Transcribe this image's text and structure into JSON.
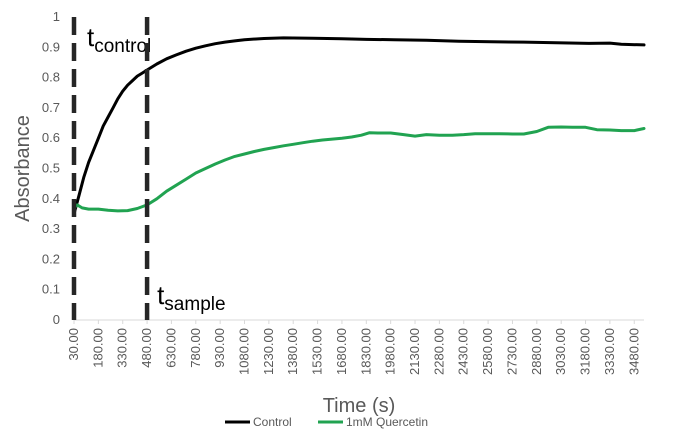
{
  "chart_data": {
    "type": "line",
    "title": "",
    "xlabel": "Time (s)",
    "ylabel": "Absorbance",
    "ylim": [
      0,
      1
    ],
    "xlim": [
      30,
      3540
    ],
    "grid": false,
    "legend_position": "bottom",
    "y_ticks": [
      "0",
      "0.1",
      "0.2",
      "0.3",
      "0.4",
      "0.5",
      "0.6",
      "0.7",
      "0.8",
      "0.9",
      "1"
    ],
    "x_ticks": [
      "30.00",
      "180.00",
      "330.00",
      "480.00",
      "630.00",
      "780.00",
      "930.00",
      "1080.00",
      "1230.00",
      "1380.00",
      "1530.00",
      "1680.00",
      "1830.00",
      "1980.00",
      "2130.00",
      "2280.00",
      "2430.00",
      "2580.00",
      "2730.00",
      "2880.00",
      "3030.00",
      "3180.00",
      "3330.00",
      "3480.00"
    ],
    "series": [
      {
        "name": "Control",
        "color": "#000000",
        "points": [
          [
            30,
            0.35
          ],
          [
            60,
            0.41
          ],
          [
            90,
            0.47
          ],
          [
            120,
            0.52
          ],
          [
            150,
            0.56
          ],
          [
            180,
            0.6
          ],
          [
            210,
            0.64
          ],
          [
            240,
            0.67
          ],
          [
            270,
            0.7
          ],
          [
            300,
            0.73
          ],
          [
            330,
            0.755
          ],
          [
            360,
            0.775
          ],
          [
            390,
            0.79
          ],
          [
            420,
            0.805
          ],
          [
            450,
            0.815
          ],
          [
            480,
            0.825
          ],
          [
            540,
            0.845
          ],
          [
            600,
            0.862
          ],
          [
            660,
            0.875
          ],
          [
            720,
            0.887
          ],
          [
            780,
            0.897
          ],
          [
            840,
            0.905
          ],
          [
            900,
            0.912
          ],
          [
            960,
            0.917
          ],
          [
            1020,
            0.921
          ],
          [
            1080,
            0.925
          ],
          [
            1200,
            0.929
          ],
          [
            1320,
            0.931
          ],
          [
            1500,
            0.93
          ],
          [
            1680,
            0.928
          ],
          [
            1830,
            0.926
          ],
          [
            2000,
            0.925
          ],
          [
            2200,
            0.923
          ],
          [
            2400,
            0.92
          ],
          [
            2600,
            0.918
          ],
          [
            2800,
            0.917
          ],
          [
            3000,
            0.915
          ],
          [
            3200,
            0.913
          ],
          [
            3330,
            0.914
          ],
          [
            3400,
            0.91
          ],
          [
            3540,
            0.908
          ]
        ]
      },
      {
        "name": "1mM Quercetin",
        "color": "#21a351",
        "points": [
          [
            30,
            0.37
          ],
          [
            50,
            0.38
          ],
          [
            80,
            0.37
          ],
          [
            120,
            0.366
          ],
          [
            180,
            0.366
          ],
          [
            240,
            0.362
          ],
          [
            300,
            0.36
          ],
          [
            360,
            0.361
          ],
          [
            420,
            0.368
          ],
          [
            480,
            0.38
          ],
          [
            540,
            0.4
          ],
          [
            600,
            0.425
          ],
          [
            660,
            0.445
          ],
          [
            720,
            0.465
          ],
          [
            780,
            0.485
          ],
          [
            840,
            0.5
          ],
          [
            900,
            0.515
          ],
          [
            960,
            0.528
          ],
          [
            1020,
            0.54
          ],
          [
            1080,
            0.548
          ],
          [
            1140,
            0.556
          ],
          [
            1200,
            0.563
          ],
          [
            1260,
            0.569
          ],
          [
            1320,
            0.575
          ],
          [
            1380,
            0.58
          ],
          [
            1440,
            0.585
          ],
          [
            1500,
            0.59
          ],
          [
            1560,
            0.594
          ],
          [
            1620,
            0.597
          ],
          [
            1680,
            0.6
          ],
          [
            1740,
            0.604
          ],
          [
            1800,
            0.61
          ],
          [
            1850,
            0.618
          ],
          [
            1900,
            0.617
          ],
          [
            1980,
            0.617
          ],
          [
            2060,
            0.612
          ],
          [
            2130,
            0.607
          ],
          [
            2200,
            0.612
          ],
          [
            2280,
            0.61
          ],
          [
            2360,
            0.61
          ],
          [
            2430,
            0.612
          ],
          [
            2500,
            0.615
          ],
          [
            2580,
            0.615
          ],
          [
            2650,
            0.615
          ],
          [
            2730,
            0.614
          ],
          [
            2800,
            0.614
          ],
          [
            2880,
            0.622
          ],
          [
            2950,
            0.636
          ],
          [
            3030,
            0.637
          ],
          [
            3100,
            0.636
          ],
          [
            3180,
            0.636
          ],
          [
            3250,
            0.628
          ],
          [
            3330,
            0.627
          ],
          [
            3400,
            0.625
          ],
          [
            3480,
            0.625
          ],
          [
            3540,
            0.632
          ]
        ]
      }
    ],
    "annotations": [
      {
        "main": "t",
        "sub": "control",
        "x": 30
      },
      {
        "main": "t",
        "sub": "sample",
        "x": 480
      }
    ]
  }
}
